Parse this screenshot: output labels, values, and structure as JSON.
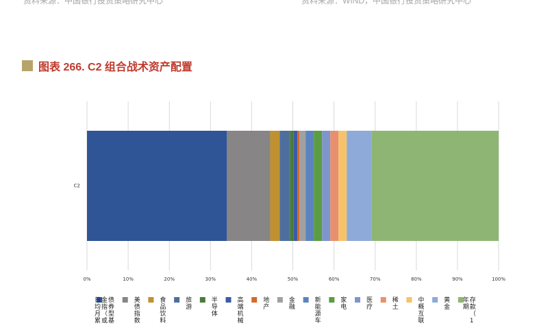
{
  "header": {
    "source_left": "资料来源：中国银行投资策略研究中心",
    "source_right": "资料来源：WIND，中国银行投资策略研究中心"
  },
  "figure": {
    "title": "图表 266. C2 组合战术资产配置"
  },
  "chart_data": {
    "type": "bar",
    "orientation": "horizontal",
    "stacked": true,
    "percent": true,
    "categories": [
      "C2"
    ],
    "xlim": [
      0,
      100
    ],
    "xticks": [
      "0%",
      "10%",
      "20%",
      "30%",
      "40%",
      "50%",
      "60%",
      "70%",
      "80%",
      "90%",
      "100%"
    ],
    "grid": true,
    "legend_position": "bottom",
    "series": [
      {
        "name": "债券型基金指（或日均月累",
        "values": [
          34
        ],
        "color": "#2f5597"
      },
      {
        "name": "美债指数",
        "values": [
          10.5
        ],
        "color": "#878585"
      },
      {
        "name": "食品饮料",
        "values": [
          2.3
        ],
        "color": "#bf9130"
      },
      {
        "name": "旅游",
        "values": [
          2.5
        ],
        "color": "#4e6f9e"
      },
      {
        "name": "半导体",
        "values": [
          0.9
        ],
        "color": "#4a7b3a"
      },
      {
        "name": "高端机械",
        "values": [
          0.9
        ],
        "color": "#3b5ba8"
      },
      {
        "name": "地产",
        "values": [
          0.5
        ],
        "color": "#d46a2a"
      },
      {
        "name": "金融",
        "values": [
          1.5
        ],
        "color": "#a1a1a1"
      },
      {
        "name": "新能源车",
        "values": [
          2.0
        ],
        "color": "#5b84be"
      },
      {
        "name": "家电",
        "values": [
          2.0
        ],
        "color": "#5c9c43"
      },
      {
        "name": "医疗",
        "values": [
          2.0
        ],
        "color": "#7e96cc"
      },
      {
        "name": "稀土",
        "values": [
          2.0
        ],
        "color": "#e8906d"
      },
      {
        "name": "中概互联",
        "values": [
          2.0
        ],
        "color": "#f6c26a"
      },
      {
        "name": "黄金",
        "values": [
          6.0
        ],
        "color": "#8eaad8"
      },
      {
        "name": "存款（1年期",
        "values": [
          30.9
        ],
        "color": "#8fb574"
      }
    ]
  }
}
